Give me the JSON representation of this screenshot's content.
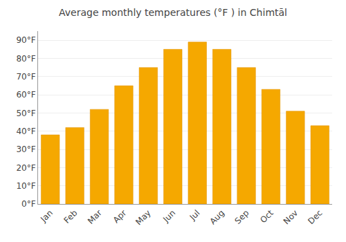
{
  "chart_data": {
    "type": "bar",
    "title": "Average monthly temperatures (°F ) in Chimtāl",
    "categories": [
      "Jan",
      "Feb",
      "Mar",
      "Apr",
      "May",
      "Jun",
      "Jul",
      "Aug",
      "Sep",
      "Oct",
      "Nov",
      "Dec"
    ],
    "values": [
      38,
      42,
      52,
      65,
      75,
      85,
      89,
      85,
      75,
      63,
      51,
      43
    ],
    "color": "#F5A800",
    "ylim": [
      0,
      95
    ],
    "yticks": [
      {
        "value": 0,
        "label": "0°F"
      },
      {
        "value": 10,
        "label": "10°F"
      },
      {
        "value": 20,
        "label": "20°F"
      },
      {
        "value": 30,
        "label": "30°F"
      },
      {
        "value": 40,
        "label": "40°F"
      },
      {
        "value": 50,
        "label": "50°F"
      },
      {
        "value": 60,
        "label": "60°F"
      },
      {
        "value": 70,
        "label": "70°F"
      },
      {
        "value": 80,
        "label": "80°F"
      },
      {
        "value": 90,
        "label": "90°F"
      }
    ],
    "grid": true
  }
}
